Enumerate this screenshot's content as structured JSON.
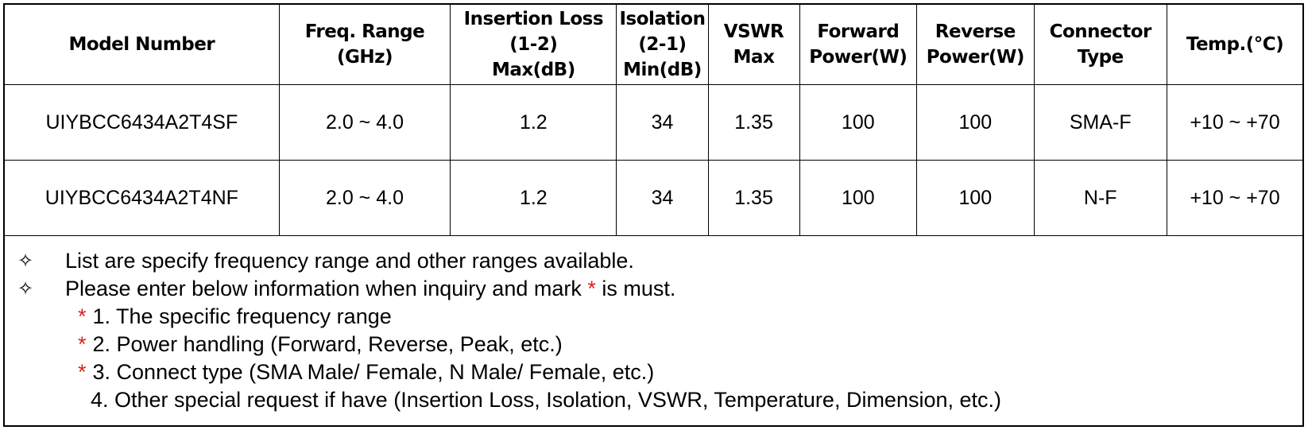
{
  "table": {
    "headers": [
      [
        "Model Number"
      ],
      [
        "Freq. Range",
        "(GHz)"
      ],
      [
        "Insertion Loss",
        "(1-2)",
        "Max(dB)"
      ],
      [
        "Isolation",
        "(2-1)",
        "Min(dB)"
      ],
      [
        "VSWR",
        "Max"
      ],
      [
        "Forward",
        "Power(W)"
      ],
      [
        "Reverse",
        "Power(W)"
      ],
      [
        "Connector",
        "Type"
      ],
      [
        "Temp.(°C)"
      ]
    ],
    "rows": [
      [
        "UIYBCC6434A2T4SF",
        "2.0 ~ 4.0",
        "1.2",
        "34",
        "1.35",
        "100",
        "100",
        "SMA-F",
        "+10 ~ +70"
      ],
      [
        "UIYBCC6434A2T4NF",
        "2.0 ~ 4.0",
        "1.2",
        "34",
        "1.35",
        "100",
        "100",
        "N-F",
        "+10 ~ +70"
      ]
    ]
  },
  "notes": {
    "bullet_glyph": "✧",
    "bullet1": "List are specify frequency range and other ranges available.",
    "bullet2_before": "Please enter below information when inquiry and mark ",
    "star": "*",
    "bullet2_after": " is must.",
    "requirements": [
      {
        "required": true,
        "text": "1. The specific frequency range"
      },
      {
        "required": true,
        "text": "2. Power handling (Forward, Reverse, Peak, etc.)"
      },
      {
        "required": true,
        "text": "3. Connect type (SMA Male/ Female, N Male/ Female, etc.)"
      },
      {
        "required": false,
        "text": "4. Other special request if have (Insertion Loss, Isolation, VSWR, Temperature, Dimension, etc.)"
      }
    ]
  },
  "colors": {
    "star": "#e0201a",
    "border": "#000000"
  }
}
